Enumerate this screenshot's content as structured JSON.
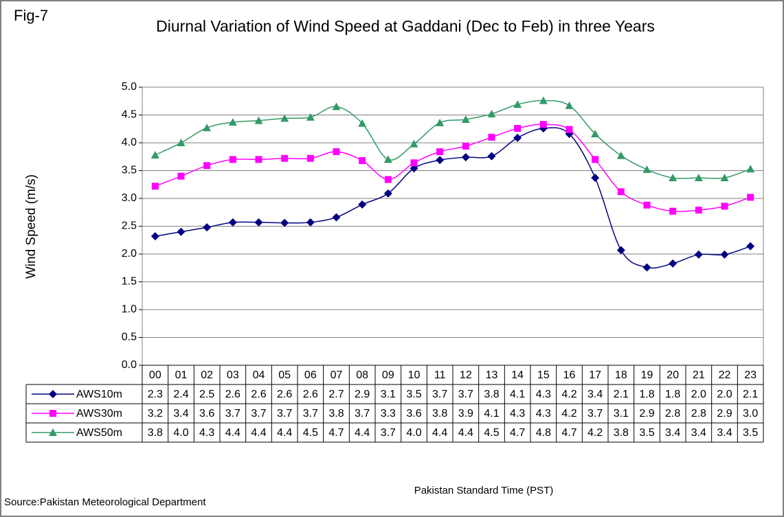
{
  "chart_data": {
    "type": "line",
    "figure_label": "Fig-7",
    "title": "Diurnal Variation of Wind Speed at Gaddani (Dec to Feb) in three Years",
    "y_label": "Wind Speed (m/s)",
    "x_label": "Pakistan Standard Time (PST)",
    "source": "Source:Pakistan Meteorological Department",
    "categories": [
      "00",
      "01",
      "02",
      "03",
      "04",
      "05",
      "06",
      "07",
      "08",
      "09",
      "10",
      "11",
      "12",
      "13",
      "14",
      "15",
      "16",
      "17",
      "18",
      "19",
      "20",
      "21",
      "22",
      "23"
    ],
    "series": [
      {
        "name": "AWS10m",
        "color": "#000080",
        "marker": "diamond",
        "values": [
          2.32,
          2.4,
          2.48,
          2.57,
          2.57,
          2.56,
          2.57,
          2.66,
          2.89,
          3.09,
          3.54,
          3.69,
          3.74,
          3.76,
          4.09,
          4.26,
          4.16,
          3.37,
          2.07,
          1.76,
          1.83,
          1.99,
          1.99,
          2.14
        ],
        "value_labels": [
          "2.3",
          "2.4",
          "2.5",
          "2.6",
          "2.6",
          "2.6",
          "2.6",
          "2.7",
          "2.9",
          "3.1",
          "3.5",
          "3.7",
          "3.7",
          "3.8",
          "4.1",
          "4.3",
          "4.2",
          "3.4",
          "2.1",
          "1.8",
          "1.8",
          "2.0",
          "2.0",
          "2.1"
        ]
      },
      {
        "name": "AWS30m",
        "color": "#ff00ff",
        "marker": "square",
        "values": [
          3.22,
          3.4,
          3.59,
          3.7,
          3.7,
          3.72,
          3.72,
          3.84,
          3.68,
          3.34,
          3.64,
          3.84,
          3.94,
          4.1,
          4.26,
          4.33,
          4.24,
          3.7,
          3.12,
          2.88,
          2.77,
          2.79,
          2.86,
          3.02
        ],
        "value_labels": [
          "3.2",
          "3.4",
          "3.6",
          "3.7",
          "3.7",
          "3.7",
          "3.7",
          "3.8",
          "3.7",
          "3.3",
          "3.6",
          "3.8",
          "3.9",
          "4.1",
          "4.3",
          "4.3",
          "4.2",
          "3.7",
          "3.1",
          "2.9",
          "2.8",
          "2.8",
          "2.9",
          "3.0"
        ]
      },
      {
        "name": "AWS50m",
        "color": "#339966",
        "marker": "triangle",
        "values": [
          3.78,
          4.0,
          4.27,
          4.37,
          4.4,
          4.44,
          4.46,
          4.65,
          4.35,
          3.7,
          3.98,
          4.36,
          4.42,
          4.52,
          4.69,
          4.76,
          4.67,
          4.16,
          3.77,
          3.52,
          3.37,
          3.37,
          3.37,
          3.53
        ],
        "value_labels": [
          "3.8",
          "4.0",
          "4.3",
          "4.4",
          "4.4",
          "4.4",
          "4.5",
          "4.7",
          "4.4",
          "3.7",
          "4.0",
          "4.4",
          "4.4",
          "4.5",
          "4.7",
          "4.8",
          "4.7",
          "4.2",
          "3.8",
          "3.5",
          "3.4",
          "3.4",
          "3.4",
          "3.5"
        ]
      }
    ],
    "ylim": [
      0,
      5
    ],
    "yticks": [
      {
        "value": 0,
        "label": "0.0"
      },
      {
        "value": 0.5,
        "label": "0.5"
      },
      {
        "value": 1,
        "label": "1.0"
      },
      {
        "value": 1.5,
        "label": "1.5"
      },
      {
        "value": 2,
        "label": "2.0"
      },
      {
        "value": 2.5,
        "label": "2.5"
      },
      {
        "value": 3,
        "label": "3.0"
      },
      {
        "value": 3.5,
        "label": "3.5"
      },
      {
        "value": 4,
        "label": "4.0"
      },
      {
        "value": 4.5,
        "label": "4.5"
      },
      {
        "value": 5,
        "label": "5.0"
      }
    ],
    "grid": true
  }
}
